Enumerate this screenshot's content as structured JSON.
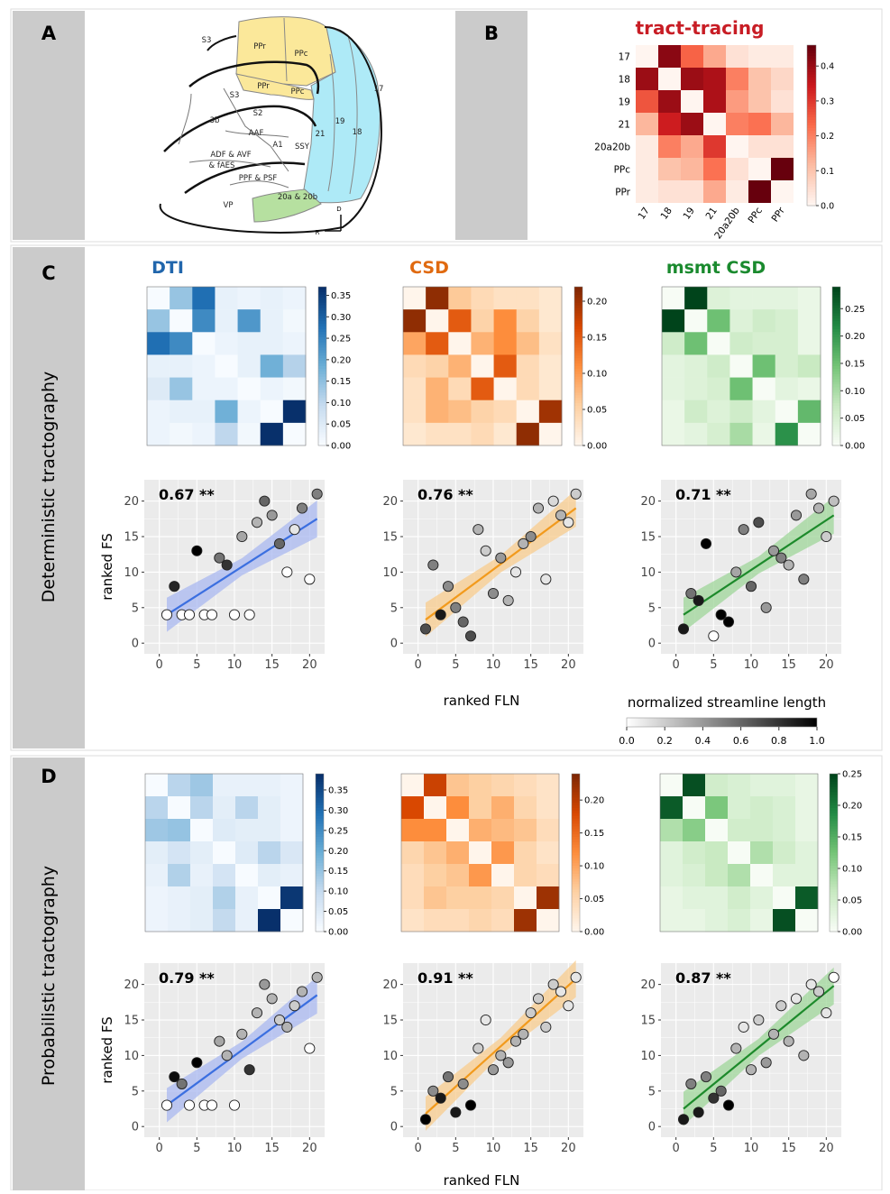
{
  "panels": {
    "a": "A",
    "b": "B",
    "c": "C",
    "d": "D"
  },
  "row_titles": {
    "c": "Deterministic tractography",
    "d": "Probabilistic tractography"
  },
  "method_titles": [
    "DTI",
    "CSD",
    "msmt CSD"
  ],
  "colors": {
    "dti": "#2166ac",
    "dti_line": "#3b6fe0",
    "dti_band": "#a9b8f0",
    "csd": "#e06a10",
    "csd_line": "#f29a1c",
    "csd_band": "#f8cc8e",
    "msmt": "#1a8a2e",
    "msmt_line": "#1d8a2b",
    "msmt_band": "#9fd69a",
    "tract": "#c81d25",
    "atlas_yellow": "#fbe89a",
    "atlas_blue": "#aeeaf7",
    "atlas_green": "#b6e0a0",
    "panel_grey": "#cbcbcb",
    "plot_bg": "#ebebeb"
  },
  "atlas": {
    "labels": [
      "S3",
      "PPr",
      "PPc",
      "PPr",
      "PPc",
      "S3",
      "S2",
      "3b",
      "AAF",
      "A1",
      "SSY",
      "ADF & AVF",
      "& fAES",
      "PPF & PSF",
      "VP",
      "19",
      "18",
      "21",
      "17",
      "20a & 20b"
    ],
    "compass": {
      "d": "D",
      "r": "R"
    }
  },
  "tract_tracing": {
    "title": "tract-tracing",
    "row_labels": [
      "17",
      "18",
      "19",
      "21",
      "20a20b",
      "PPc",
      "PPr"
    ],
    "col_labels": [
      "17",
      "18",
      "19",
      "21",
      "20a20b",
      "PPc",
      "PPr"
    ],
    "matrix": [
      [
        0,
        0.42,
        0.24,
        0.14,
        0.04,
        0.02,
        0.02
      ],
      [
        0.4,
        0,
        0.4,
        0.38,
        0.2,
        0.1,
        0.06
      ],
      [
        0.26,
        0.4,
        0,
        0.38,
        0.16,
        0.1,
        0.04
      ],
      [
        0.12,
        0.34,
        0.4,
        0,
        0.2,
        0.22,
        0.12
      ],
      [
        0.02,
        0.2,
        0.14,
        0.3,
        0,
        0.04,
        0.04
      ],
      [
        0.02,
        0.1,
        0.12,
        0.22,
        0.04,
        0,
        0.46
      ],
      [
        0.02,
        0.04,
        0.04,
        0.14,
        0.02,
        0.46,
        0
      ]
    ],
    "vmax": 0.46,
    "ticks": [
      "0.4",
      "0.3",
      "0.2",
      "0.1",
      "0.0"
    ]
  },
  "matrices": {
    "det_dti": {
      "vmax": 0.37,
      "ticks": [
        "0.35",
        "0.30",
        "0.25",
        "0.20",
        "0.15",
        "0.10",
        "0.05",
        "0.00"
      ],
      "m": [
        [
          0,
          0.14,
          0.28,
          0.03,
          0.02,
          0.03,
          0.02
        ],
        [
          0.14,
          0,
          0.24,
          0.03,
          0.22,
          0.03,
          0.01
        ],
        [
          0.28,
          0.24,
          0,
          0.02,
          0.03,
          0.03,
          0.02
        ],
        [
          0.03,
          0.03,
          0.02,
          0,
          0.03,
          0.18,
          0.11
        ],
        [
          0.05,
          0.14,
          0.02,
          0.02,
          0,
          0.02,
          0.01
        ],
        [
          0.02,
          0.03,
          0.03,
          0.18,
          0.02,
          0,
          0.37
        ],
        [
          0.02,
          0.01,
          0.02,
          0.1,
          0.01,
          0.37,
          0
        ]
      ]
    },
    "det_csd": {
      "vmax": 0.22,
      "ticks": [
        "0.20",
        "0.15",
        "0.10",
        "0.05",
        "0.00"
      ],
      "m": [
        [
          0,
          0.21,
          0.06,
          0.04,
          0.03,
          0.03,
          0.02
        ],
        [
          0.21,
          0,
          0.15,
          0.05,
          0.11,
          0.05,
          0.02
        ],
        [
          0.09,
          0.15,
          0,
          0.08,
          0.11,
          0.07,
          0.03
        ],
        [
          0.04,
          0.05,
          0.08,
          0,
          0.15,
          0.04,
          0.02
        ],
        [
          0.03,
          0.08,
          0.04,
          0.15,
          0,
          0.04,
          0.02
        ],
        [
          0.03,
          0.08,
          0.07,
          0.05,
          0.04,
          0,
          0.2
        ],
        [
          0.02,
          0.03,
          0.03,
          0.04,
          0.02,
          0.21,
          0
        ]
      ]
    },
    "det_msmt": {
      "vmax": 0.29,
      "ticks": [
        "0.25",
        "0.20",
        "0.15",
        "0.10",
        "0.05",
        "0.00"
      ],
      "m": [
        [
          0,
          0.29,
          0.04,
          0.03,
          0.03,
          0.03,
          0.02
        ],
        [
          0.29,
          0,
          0.15,
          0.04,
          0.06,
          0.05,
          0.02
        ],
        [
          0.06,
          0.15,
          0,
          0.06,
          0.05,
          0.05,
          0.02
        ],
        [
          0.03,
          0.04,
          0.06,
          0,
          0.15,
          0.05,
          0.07
        ],
        [
          0.03,
          0.04,
          0.05,
          0.15,
          0,
          0.03,
          0.02
        ],
        [
          0.02,
          0.06,
          0.04,
          0.06,
          0.03,
          0,
          0.16
        ],
        [
          0.02,
          0.03,
          0.05,
          0.1,
          0.02,
          0.21,
          0
        ]
      ]
    },
    "prob_dti": {
      "vmax": 0.39,
      "ticks": [
        "0.35",
        "0.30",
        "0.25",
        "0.20",
        "0.15",
        "0.10",
        "0.05",
        "0.00"
      ],
      "m": [
        [
          0,
          0.11,
          0.14,
          0.03,
          0.03,
          0.03,
          0.02
        ],
        [
          0.11,
          0,
          0.11,
          0.04,
          0.11,
          0.04,
          0.02
        ],
        [
          0.14,
          0.15,
          0,
          0.05,
          0.04,
          0.04,
          0.02
        ],
        [
          0.04,
          0.07,
          0.04,
          0,
          0.05,
          0.11,
          0.06
        ],
        [
          0.03,
          0.12,
          0.03,
          0.07,
          0,
          0.04,
          0.03
        ],
        [
          0.02,
          0.03,
          0.04,
          0.12,
          0.03,
          0,
          0.38
        ],
        [
          0.02,
          0.03,
          0.04,
          0.1,
          0.03,
          0.39,
          0
        ]
      ]
    },
    "prob_csd": {
      "vmax": 0.24,
      "ticks": [
        "0.20",
        "0.15",
        "0.10",
        "0.05",
        "0.00"
      ],
      "m": [
        [
          0,
          0.19,
          0.07,
          0.06,
          0.05,
          0.04,
          0.03
        ],
        [
          0.18,
          0,
          0.12,
          0.06,
          0.09,
          0.05,
          0.03
        ],
        [
          0.12,
          0.12,
          0,
          0.09,
          0.08,
          0.07,
          0.04
        ],
        [
          0.05,
          0.07,
          0.09,
          0,
          0.11,
          0.05,
          0.03
        ],
        [
          0.04,
          0.06,
          0.07,
          0.11,
          0,
          0.05,
          0.04
        ],
        [
          0.04,
          0.07,
          0.06,
          0.06,
          0.05,
          0,
          0.22
        ],
        [
          0.03,
          0.04,
          0.04,
          0.05,
          0.04,
          0.22,
          0
        ]
      ]
    },
    "prob_msmt": {
      "vmax": 0.25,
      "ticks": [
        "0.25",
        "0.20",
        "0.15",
        "0.10",
        "0.05",
        "0.00"
      ],
      "m": [
        [
          0,
          0.24,
          0.05,
          0.04,
          0.03,
          0.03,
          0.02
        ],
        [
          0.23,
          0,
          0.12,
          0.04,
          0.05,
          0.04,
          0.02
        ],
        [
          0.08,
          0.11,
          0,
          0.05,
          0.05,
          0.04,
          0.02
        ],
        [
          0.03,
          0.05,
          0.06,
          0,
          0.08,
          0.05,
          0.03
        ],
        [
          0.03,
          0.04,
          0.06,
          0.08,
          0,
          0.03,
          0.03
        ],
        [
          0.02,
          0.03,
          0.03,
          0.05,
          0.03,
          0,
          0.23
        ],
        [
          0.02,
          0.02,
          0.03,
          0.04,
          0.02,
          0.24,
          0
        ]
      ]
    }
  },
  "scatter_common": {
    "ylabel": "ranked FS",
    "xlabel": "ranked FLN",
    "xticks": [
      "0",
      "5",
      "10",
      "15",
      "20"
    ],
    "yticks": [
      "0",
      "5",
      "10",
      "15",
      "20"
    ]
  },
  "gradient": {
    "label": "normalized streamline length",
    "ticks": [
      "0.0",
      "0.2",
      "0.4",
      "0.6",
      "0.8",
      "1.0"
    ]
  },
  "chart_data": [
    {
      "type": "scatter",
      "id": "det_dti",
      "corr": "0.67 **",
      "fit": {
        "x0": 1,
        "y0": 4.0,
        "x1": 21,
        "y1": 17.5
      },
      "points": [
        [
          1,
          4,
          0
        ],
        [
          2,
          8,
          0.85
        ],
        [
          3,
          4,
          0
        ],
        [
          4,
          4,
          0
        ],
        [
          5,
          13,
          1
        ],
        [
          6,
          4,
          0
        ],
        [
          7,
          4,
          0
        ],
        [
          8,
          12,
          0.55
        ],
        [
          9,
          11,
          0.8
        ],
        [
          10,
          4,
          0
        ],
        [
          11,
          15,
          0.35
        ],
        [
          12,
          4,
          0
        ],
        [
          13,
          17,
          0.3
        ],
        [
          14,
          20,
          0.6
        ],
        [
          15,
          18,
          0.4
        ],
        [
          16,
          14,
          0.6
        ],
        [
          17,
          10,
          0
        ],
        [
          18,
          16,
          0.1
        ],
        [
          19,
          19,
          0.5
        ],
        [
          20,
          9,
          0
        ],
        [
          21,
          21,
          0.5
        ]
      ]
    },
    {
      "type": "scatter",
      "id": "det_csd",
      "corr": "0.76 **",
      "fit": {
        "x0": 1,
        "y0": 3.3,
        "x1": 21,
        "y1": 19.0
      },
      "points": [
        [
          1,
          2,
          0.7
        ],
        [
          2,
          11,
          0.5
        ],
        [
          3,
          4,
          0.9
        ],
        [
          4,
          8,
          0.45
        ],
        [
          5,
          5,
          0.5
        ],
        [
          6,
          3,
          0.6
        ],
        [
          7,
          1,
          0.7
        ],
        [
          8,
          16,
          0.3
        ],
        [
          9,
          13,
          0.2
        ],
        [
          10,
          7,
          0.45
        ],
        [
          11,
          12,
          0.4
        ],
        [
          12,
          6,
          0.3
        ],
        [
          13,
          10,
          0.1
        ],
        [
          14,
          14,
          0.3
        ],
        [
          15,
          15,
          0.45
        ],
        [
          16,
          19,
          0.3
        ],
        [
          17,
          9,
          0.1
        ],
        [
          18,
          20,
          0.15
        ],
        [
          19,
          18,
          0.3
        ],
        [
          20,
          17,
          0.1
        ],
        [
          21,
          21,
          0.2
        ]
      ]
    },
    {
      "type": "scatter",
      "id": "det_msmt",
      "corr": "0.71 **",
      "fit": {
        "x0": 1,
        "y0": 4.0,
        "x1": 21,
        "y1": 18.0
      },
      "points": [
        [
          1,
          2,
          0.9
        ],
        [
          2,
          7,
          0.55
        ],
        [
          3,
          6,
          0.9
        ],
        [
          4,
          14,
          1
        ],
        [
          5,
          1,
          0
        ],
        [
          6,
          4,
          1
        ],
        [
          7,
          3,
          1
        ],
        [
          8,
          10,
          0.35
        ],
        [
          9,
          16,
          0.5
        ],
        [
          10,
          8,
          0.6
        ],
        [
          11,
          17,
          0.7
        ],
        [
          12,
          5,
          0.4
        ],
        [
          13,
          13,
          0.4
        ],
        [
          14,
          12,
          0.5
        ],
        [
          15,
          11,
          0.3
        ],
        [
          16,
          18,
          0.4
        ],
        [
          17,
          9,
          0.5
        ],
        [
          18,
          21,
          0.35
        ],
        [
          19,
          19,
          0.3
        ],
        [
          20,
          15,
          0.2
        ],
        [
          21,
          20,
          0.25
        ]
      ]
    },
    {
      "type": "scatter",
      "id": "prob_dti",
      "corr": "0.79 **",
      "fit": {
        "x0": 1,
        "y0": 3.0,
        "x1": 21,
        "y1": 18.5
      },
      "points": [
        [
          1,
          3,
          0
        ],
        [
          2,
          7,
          0.95
        ],
        [
          3,
          6,
          0.55
        ],
        [
          4,
          3,
          0
        ],
        [
          5,
          9,
          1
        ],
        [
          6,
          3,
          0
        ],
        [
          7,
          3,
          0
        ],
        [
          8,
          12,
          0.35
        ],
        [
          9,
          10,
          0.3
        ],
        [
          10,
          3,
          0
        ],
        [
          11,
          13,
          0.3
        ],
        [
          12,
          8,
          0.8
        ],
        [
          13,
          16,
          0.3
        ],
        [
          14,
          20,
          0.4
        ],
        [
          15,
          18,
          0.3
        ],
        [
          16,
          15,
          0.2
        ],
        [
          17,
          14,
          0.3
        ],
        [
          18,
          17,
          0.2
        ],
        [
          19,
          19,
          0.3
        ],
        [
          20,
          11,
          0
        ],
        [
          21,
          21,
          0.3
        ]
      ]
    },
    {
      "type": "scatter",
      "id": "prob_csd",
      "corr": "0.91 **",
      "fit": {
        "x0": 1,
        "y0": 1.8,
        "x1": 21,
        "y1": 20.8
      },
      "points": [
        [
          1,
          1,
          1
        ],
        [
          2,
          5,
          0.45
        ],
        [
          3,
          4,
          0.9
        ],
        [
          4,
          7,
          0.55
        ],
        [
          5,
          2,
          0.9
        ],
        [
          6,
          6,
          0.45
        ],
        [
          7,
          3,
          1
        ],
        [
          8,
          11,
          0.2
        ],
        [
          9,
          15,
          0.1
        ],
        [
          10,
          8,
          0.4
        ],
        [
          11,
          10,
          0.3
        ],
        [
          12,
          9,
          0.4
        ],
        [
          13,
          12,
          0.3
        ],
        [
          14,
          13,
          0.3
        ],
        [
          15,
          16,
          0.2
        ],
        [
          16,
          18,
          0.2
        ],
        [
          17,
          14,
          0.2
        ],
        [
          18,
          20,
          0.2
        ],
        [
          19,
          19,
          0.1
        ],
        [
          20,
          17,
          0.1
        ],
        [
          21,
          21,
          0.1
        ]
      ]
    },
    {
      "type": "scatter",
      "id": "prob_msmt",
      "corr": "0.87 **",
      "fit": {
        "x0": 1,
        "y0": 2.5,
        "x1": 21,
        "y1": 19.8
      },
      "points": [
        [
          1,
          1,
          0.9
        ],
        [
          2,
          6,
          0.5
        ],
        [
          3,
          2,
          0.9
        ],
        [
          4,
          7,
          0.5
        ],
        [
          5,
          4,
          0.8
        ],
        [
          6,
          5,
          0.6
        ],
        [
          7,
          3,
          1
        ],
        [
          8,
          11,
          0.3
        ],
        [
          9,
          14,
          0.1
        ],
        [
          10,
          8,
          0.3
        ],
        [
          11,
          15,
          0.2
        ],
        [
          12,
          9,
          0.4
        ],
        [
          13,
          13,
          0.3
        ],
        [
          14,
          17,
          0.2
        ],
        [
          15,
          12,
          0.3
        ],
        [
          16,
          18,
          0.1
        ],
        [
          17,
          10,
          0.3
        ],
        [
          18,
          20,
          0.1
        ],
        [
          19,
          19,
          0.2
        ],
        [
          20,
          16,
          0.1
        ],
        [
          21,
          21,
          0
        ]
      ]
    }
  ]
}
